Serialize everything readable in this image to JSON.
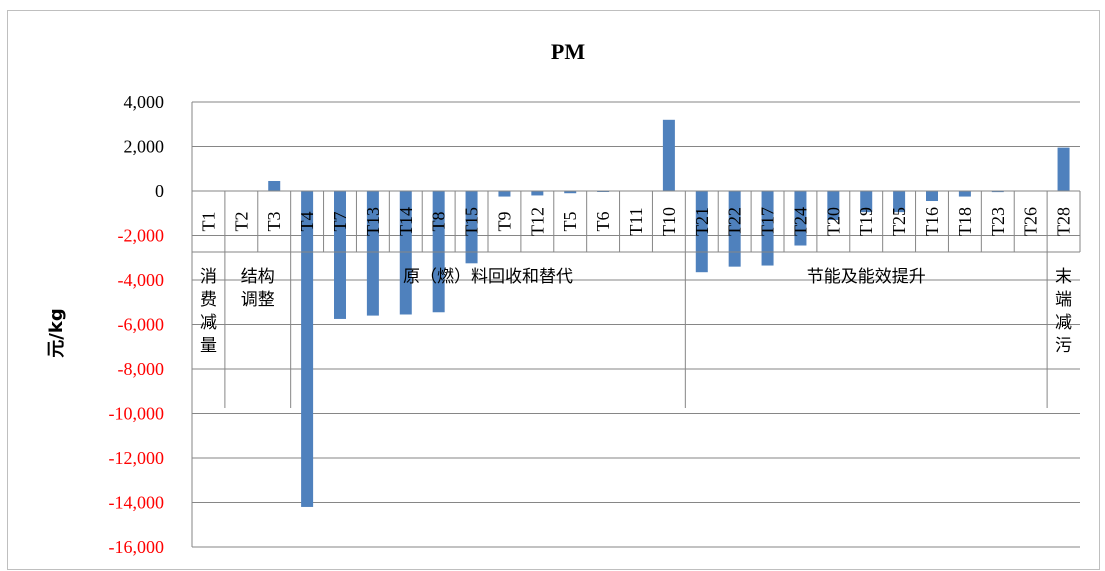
{
  "colors": {
    "bar": "#4F81BD",
    "grid": "#868686",
    "negative_tick": "#ff0000",
    "positive_tick": "#000000"
  },
  "chart_data": {
    "type": "bar",
    "title": "PM",
    "xlabel": "",
    "ylabel": "元/kg",
    "ylim": [
      -16000,
      4000
    ],
    "yticks": [
      4000,
      2000,
      0,
      -2000,
      -4000,
      -6000,
      -8000,
      -10000,
      -12000,
      -14000,
      -16000
    ],
    "ytick_labels": [
      "4,000",
      "2,000",
      "0",
      "-2,000",
      "-4,000",
      "-6,000",
      "-8,000",
      "-10,000",
      "-12,000",
      "-14,000",
      "-16,000"
    ],
    "grid": true,
    "categories": [
      "T1",
      "T2",
      "T3",
      "T4",
      "T7",
      "T13",
      "T14",
      "T8",
      "T15",
      "T9",
      "T12",
      "T5",
      "T6",
      "T11",
      "T10",
      "T21",
      "T22",
      "T17",
      "T24",
      "T20",
      "T19",
      "T25",
      "T16",
      "T18",
      "T23",
      "T26",
      "T28"
    ],
    "values": [
      0,
      0,
      450,
      -14200,
      -5750,
      -5600,
      -5550,
      -5450,
      -3250,
      -250,
      -200,
      -100,
      -20,
      0,
      3200,
      -3650,
      -3400,
      -3350,
      -2450,
      -1300,
      -950,
      -950,
      -450,
      -250,
      -50,
      0,
      1950
    ],
    "groups": [
      {
        "label_lines": [
          "消",
          "费",
          "减",
          "量"
        ],
        "start": 0,
        "end": 0
      },
      {
        "label_lines": [
          "结构",
          "调整"
        ],
        "start": 1,
        "end": 2
      },
      {
        "label_lines": [
          "原（燃）料回收和替代"
        ],
        "start": 3,
        "end": 14
      },
      {
        "label_lines": [
          "节能及能效提升"
        ],
        "start": 15,
        "end": 25
      },
      {
        "label_lines": [
          "末",
          "端",
          "减",
          "污"
        ],
        "start": 26,
        "end": 26
      }
    ]
  }
}
